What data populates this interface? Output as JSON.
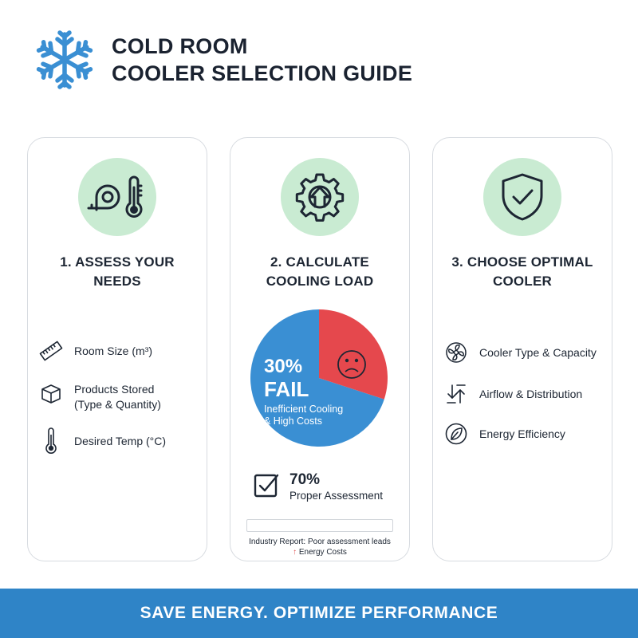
{
  "header": {
    "icon": "snowflake-icon",
    "title_line1": "COLD ROOM",
    "title_line2": "COOLER SELECTION GUIDE"
  },
  "colors": {
    "accent_blue": "#2f84c7",
    "pie_blue": "#3a8fd3",
    "pie_red": "#e5484d",
    "icon_circle_green": "#c9ebd2",
    "text_dark": "#1d2633"
  },
  "steps": [
    {
      "icon": "tape-measure-thermometer-icon",
      "title_line1": "1. ASSESS YOUR",
      "title_line2": "NEEDS",
      "items": [
        {
          "icon": "ruler-icon",
          "lines": [
            "Room Size (m³)"
          ]
        },
        {
          "icon": "box-icon",
          "lines": [
            "Products Stored",
            "(Type & Quantity)"
          ]
        },
        {
          "icon": "thermometer-icon",
          "lines": [
            "Desired Temp (°C)"
          ]
        }
      ]
    },
    {
      "icon": "gear-upload-icon",
      "title_line1": "2. CALCULATE",
      "title_line2": "COOLING LOAD",
      "pie": {
        "fail_percent_label": "30%",
        "fail_label": "FAIL",
        "fail_desc_line1": "Inefficient Cooling",
        "fail_desc_line2": "& High Costs",
        "fail_value": 30,
        "pass_value": 70,
        "fail_icon": "sad-face-icon"
      },
      "pass": {
        "icon": "checkbox-icon",
        "percent_label": "70%",
        "label": "Proper Assessment"
      },
      "report_line1": "Industry Report: Poor assessment leads",
      "report_arrow": "↑",
      "report_line2": "Energy Costs"
    },
    {
      "icon": "shield-check-icon",
      "title_line1": "3. CHOOSE OPTIMAL",
      "title_line2": "COOLER",
      "items": [
        {
          "icon": "fan-icon",
          "lines": [
            "Cooler Type & Capacity"
          ]
        },
        {
          "icon": "airflow-arrows-icon",
          "lines": [
            "Airflow & Distribution"
          ]
        },
        {
          "icon": "leaf-icon",
          "lines": [
            "Energy Efficiency"
          ]
        }
      ]
    }
  ],
  "footer": {
    "text": "SAVE ENERGY. OPTIMIZE PERFORMANCE"
  }
}
